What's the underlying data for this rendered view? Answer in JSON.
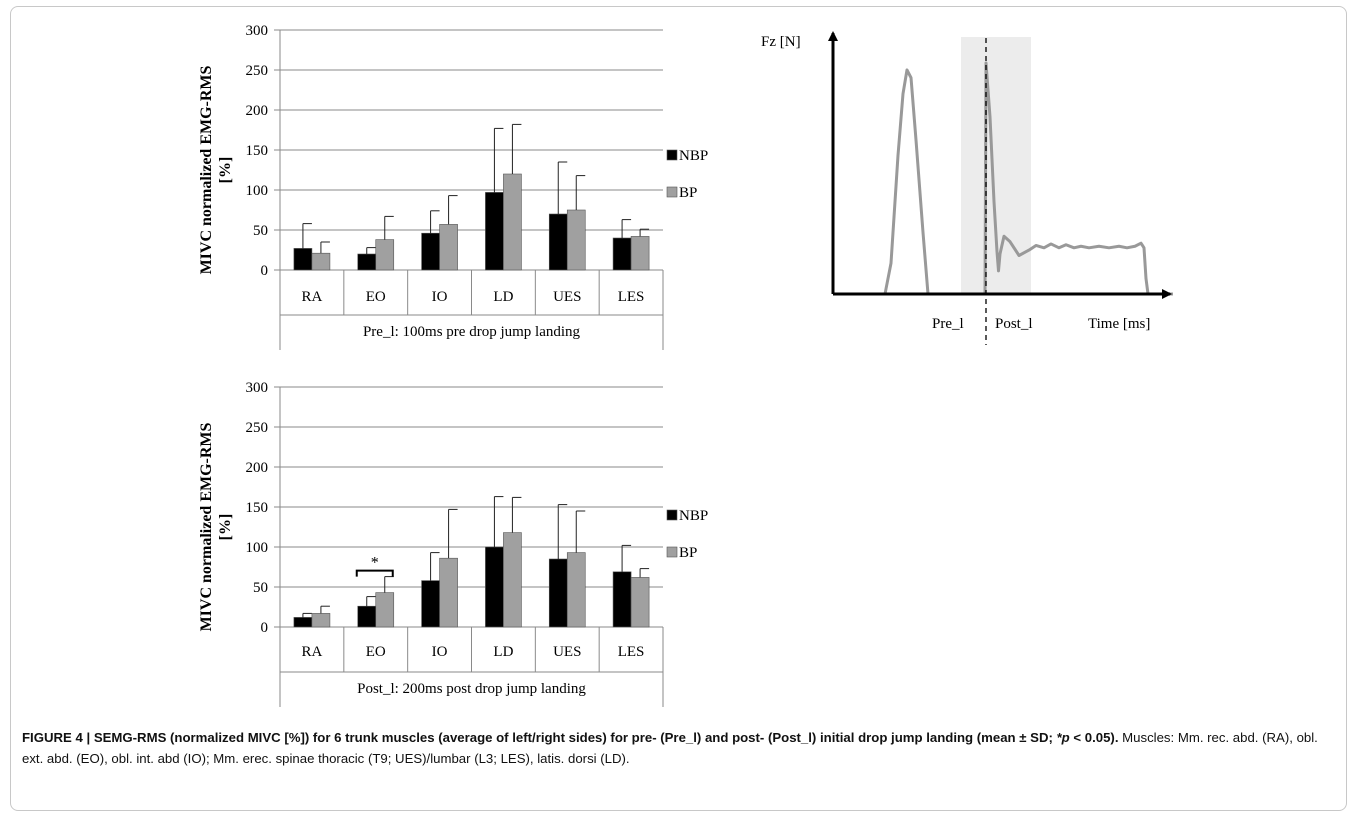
{
  "chart_data": [
    {
      "type": "bar",
      "ylabel_line1": "MIVC normalized EMG-RMS",
      "ylabel_line2": "[%]",
      "ylim": [
        0,
        300
      ],
      "yticks": [
        0,
        50,
        100,
        150,
        200,
        250,
        300
      ],
      "grid": true,
      "legend_position": "right",
      "categories": [
        "RA",
        "EO",
        "IO",
        "LD",
        "UES",
        "LES"
      ],
      "xlabel": "Pre_l: 100ms pre drop jump landing",
      "series": [
        {
          "name": "NBP",
          "color": "#000000",
          "values": [
            27,
            20,
            46,
            97,
            70,
            40
          ],
          "sd": [
            31,
            8,
            28,
            80,
            65,
            23
          ]
        },
        {
          "name": "BP",
          "color": "#a0a0a0",
          "values": [
            21,
            38,
            57,
            120,
            75,
            42
          ],
          "sd": [
            14,
            29,
            36,
            62,
            43,
            9
          ]
        }
      ],
      "annotations": []
    },
    {
      "type": "bar",
      "ylabel_line1": "MIVC normalized EMG-RMS",
      "ylabel_line2": "[%]",
      "ylim": [
        0,
        300
      ],
      "yticks": [
        0,
        50,
        100,
        150,
        200,
        250,
        300
      ],
      "grid": true,
      "legend_position": "right",
      "categories": [
        "RA",
        "EO",
        "IO",
        "LD",
        "UES",
        "LES"
      ],
      "xlabel": "Post_l: 200ms post drop jump landing",
      "series": [
        {
          "name": "NBP",
          "color": "#000000",
          "values": [
            12,
            26,
            58,
            100,
            85,
            69
          ],
          "sd": [
            5,
            12,
            35,
            63,
            68,
            33
          ]
        },
        {
          "name": "BP",
          "color": "#a0a0a0",
          "values": [
            17,
            43,
            86,
            118,
            93,
            62
          ],
          "sd": [
            9,
            20,
            61,
            44,
            52,
            11
          ]
        }
      ],
      "annotations": [
        {
          "text": "*",
          "category": "EO"
        }
      ]
    },
    {
      "type": "line",
      "ylabel": "Fz [N]",
      "xlabel": "Time [ms]",
      "phase_labels": [
        "Pre_l",
        "Post_l"
      ],
      "series": [
        {
          "color": "#999999",
          "points": [
            [
              0,
              0
            ],
            [
              52,
              0
            ],
            [
              58,
              40
            ],
            [
              65,
              180
            ],
            [
              70,
              260
            ],
            [
              74,
              291
            ],
            [
              78,
              281
            ],
            [
              83,
              200
            ],
            [
              90,
              80
            ],
            [
              95,
              0
            ],
            [
              131,
              0
            ],
            [
              152,
              0
            ],
            [
              153,
              300
            ],
            [
              157,
              230
            ],
            [
              161,
              120
            ],
            [
              164,
              55
            ],
            [
              165.5,
              30
            ],
            [
              167,
              52
            ],
            [
              171,
              75
            ],
            [
              177,
              68
            ],
            [
              186,
              50
            ],
            [
              196,
              57
            ],
            [
              203,
              63
            ],
            [
              211,
              60
            ],
            [
              218,
              65
            ],
            [
              226,
              60
            ],
            [
              233,
              64
            ],
            [
              241,
              60
            ],
            [
              248,
              62
            ],
            [
              256,
              60
            ],
            [
              266,
              62
            ],
            [
              276,
              60
            ],
            [
              286,
              62
            ],
            [
              294,
              60
            ],
            [
              302,
              62
            ],
            [
              308,
              66
            ],
            [
              311,
              60
            ],
            [
              313,
              20
            ],
            [
              315,
              0
            ],
            [
              340,
              0
            ]
          ]
        }
      ]
    }
  ],
  "caption": {
    "lead": "FIGURE 4 | SEMG-RMS (normalized MIVC [%]) for 6 trunk muscles (average of left/right sides) for pre- (Pre_l) and post- (Post_l) initial drop jump landing (mean ± SD; ",
    "p_symbol": "*p",
    "p_rest": " < 0.05).",
    "body": " Muscles: Mm. rec. abd. (RA), obl. ext. abd. (EO), obl. int. abd (IO); Mm. erec. spinae thoracic (T9; UES)/lumbar (L3; LES), latis. dorsi (LD)."
  }
}
